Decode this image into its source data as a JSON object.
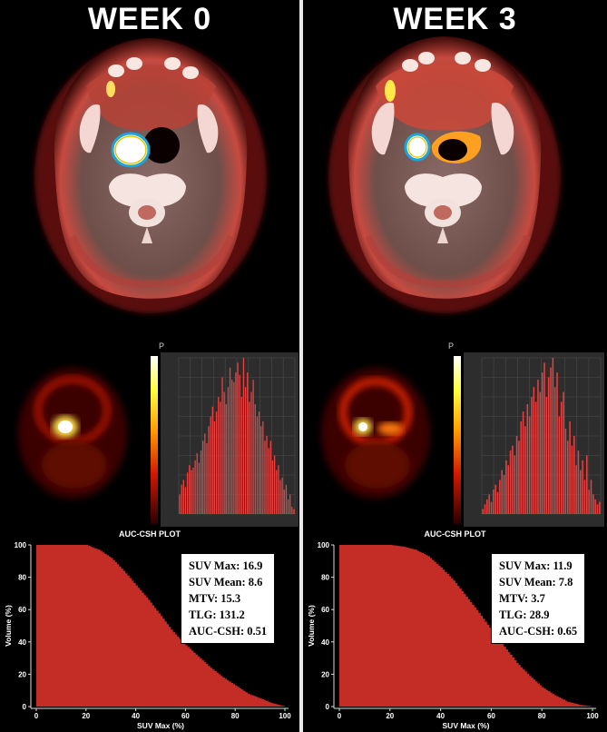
{
  "panels": [
    {
      "title": "WEEK 0",
      "auc_plot_title": "AUC-CSH PLOT",
      "stats": [
        "SUV Max: 16.9",
        "SUV Mean: 8.6",
        "MTV: 15.3",
        "TLG: 131.2",
        "AUC-CSH: 0.51"
      ]
    },
    {
      "title": "WEEK 3",
      "auc_plot_title": "AUC-CSH PLOT",
      "stats": [
        "SUV Max: 11.9",
        "SUV Mean: 7.8",
        "MTV: 3.7",
        "TLG: 28.9",
        "AUC-CSH: 0.65"
      ]
    }
  ],
  "orientation_label": "P",
  "csh_axes": {
    "ylabel": "Volume (%)",
    "xlabel": "SUV Max (%)",
    "ticks": [
      "0",
      "20",
      "40",
      "60",
      "80",
      "100"
    ]
  },
  "chart_data": [
    {
      "type": "area",
      "title": "AUC-CSH PLOT",
      "xlabel": "SUV Max (%)",
      "ylabel": "Volume (%)",
      "xlim": [
        0,
        100
      ],
      "ylim": [
        0,
        100
      ],
      "x": [
        0,
        10,
        20,
        25,
        30,
        35,
        40,
        45,
        50,
        55,
        60,
        65,
        70,
        75,
        80,
        85,
        90,
        95,
        100
      ],
      "y": [
        100,
        100,
        100,
        97,
        92,
        84,
        75,
        66,
        56,
        46,
        38,
        31,
        24,
        18,
        13,
        8,
        5,
        2,
        0
      ]
    },
    {
      "type": "area",
      "title": "AUC-CSH PLOT",
      "xlabel": "SUV Max (%)",
      "ylabel": "Volume (%)",
      "xlim": [
        0,
        100
      ],
      "ylim": [
        0,
        100
      ],
      "x": [
        0,
        10,
        20,
        25,
        30,
        35,
        40,
        45,
        50,
        55,
        60,
        65,
        70,
        75,
        80,
        85,
        90,
        95,
        100
      ],
      "y": [
        100,
        100,
        100,
        99,
        97,
        93,
        86,
        78,
        68,
        58,
        47,
        37,
        27,
        19,
        12,
        7,
        3,
        1,
        0
      ]
    }
  ],
  "histograms": [
    [
      8,
      12,
      14,
      11,
      17,
      20,
      18,
      19,
      22,
      25,
      21,
      26,
      30,
      33,
      29,
      36,
      40,
      44,
      38,
      42,
      48,
      46,
      56,
      50,
      45,
      52,
      60,
      55,
      54,
      58,
      62,
      57,
      48,
      64,
      52,
      58,
      46,
      50,
      55,
      45,
      40,
      42,
      36,
      38,
      30,
      32,
      27,
      30,
      22,
      24,
      18,
      20,
      14,
      15,
      10,
      12,
      6,
      8,
      3,
      2
    ],
    [
      2,
      4,
      6,
      8,
      5,
      10,
      12,
      9,
      14,
      18,
      16,
      22,
      20,
      26,
      28,
      24,
      32,
      30,
      38,
      42,
      36,
      45,
      40,
      48,
      52,
      46,
      55,
      50,
      58,
      62,
      48,
      56,
      60,
      64,
      52,
      58,
      40,
      46,
      50,
      35,
      30,
      38,
      28,
      32,
      20,
      26,
      18,
      22,
      14,
      24,
      10,
      14,
      8,
      6,
      4,
      5
    ]
  ],
  "colors": {
    "csh_fill": "#c42c26",
    "hist_bar": "#e8413f",
    "hist_bg": "#2d2d2d",
    "stats_bg": "#ffffff"
  }
}
